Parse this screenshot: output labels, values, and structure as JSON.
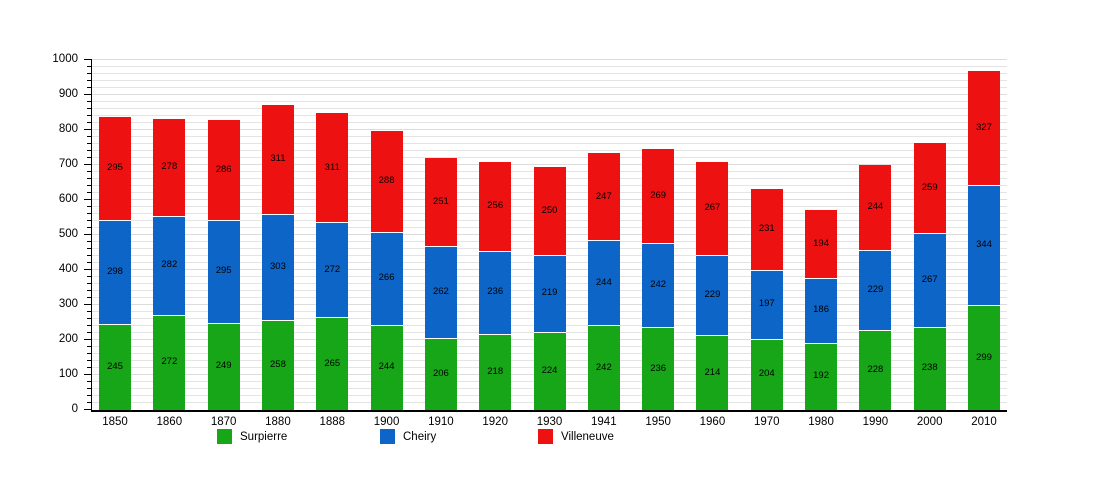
{
  "chart_data": {
    "type": "bar",
    "stacked": true,
    "title": "",
    "categories": [
      "1850",
      "1860",
      "1870",
      "1880",
      "1888",
      "1900",
      "1910",
      "1920",
      "1930",
      "1941",
      "1950",
      "1960",
      "1970",
      "1980",
      "1990",
      "2000",
      "2010"
    ],
    "series": [
      {
        "name": "Surpierre",
        "color": "#17a617",
        "values": [
          245,
          272,
          249,
          258,
          265,
          244,
          206,
          218,
          224,
          242,
          236,
          214,
          204,
          192,
          228,
          238,
          299
        ]
      },
      {
        "name": "Cheiry",
        "color": "#0d65c8",
        "values": [
          298,
          282,
          295,
          303,
          272,
          266,
          262,
          236,
          219,
          244,
          242,
          229,
          197,
          186,
          229,
          267,
          344
        ]
      },
      {
        "name": "Villeneuve",
        "color": "#ee1111",
        "values": [
          295,
          278,
          286,
          311,
          311,
          288,
          251,
          256,
          250,
          247,
          269,
          267,
          231,
          194,
          244,
          259,
          327
        ]
      }
    ],
    "ylim": [
      0,
      1000
    ],
    "y_major_step": 100,
    "y_minor_step": 20,
    "grid": "horizontal",
    "legend_position": "bottom",
    "bar_value_labels": true
  }
}
